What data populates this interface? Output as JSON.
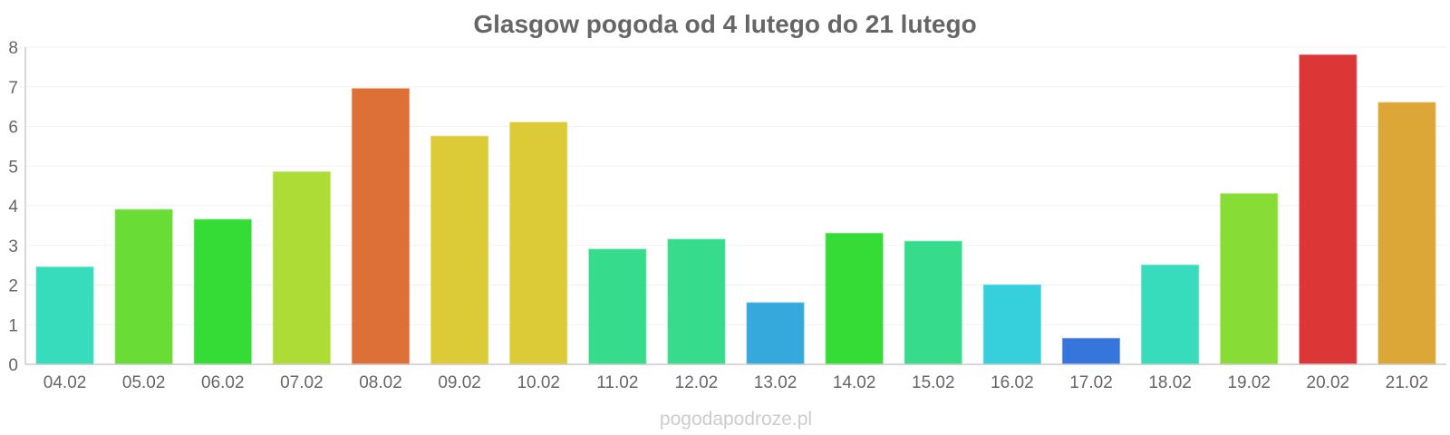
{
  "watermark": "pogodapodroze.pl",
  "chart_data": {
    "type": "bar",
    "title": "Glasgow pogoda od 4 lutego do 21 lutego",
    "xlabel": "",
    "ylabel": "",
    "ylim": [
      0,
      8
    ],
    "yticks": [
      "0",
      "1",
      "2",
      "3",
      "4",
      "5",
      "6",
      "7",
      "8"
    ],
    "grid": true,
    "categories": [
      "04.02",
      "05.02",
      "06.02",
      "07.02",
      "08.02",
      "09.02",
      "10.02",
      "11.02",
      "12.02",
      "13.02",
      "14.02",
      "15.02",
      "16.02",
      "17.02",
      "18.02",
      "19.02",
      "20.02",
      "21.02"
    ],
    "values": [
      2.45,
      3.9,
      3.65,
      4.85,
      6.95,
      5.75,
      6.1,
      2.9,
      3.15,
      1.55,
      3.3,
      3.1,
      2.0,
      0.65,
      2.5,
      4.3,
      7.8,
      6.6
    ],
    "colors": [
      "#36dcbc",
      "#6adc36",
      "#36dc36",
      "#addc36",
      "#dc7036",
      "#dccb36",
      "#dccb36",
      "#36dc8c",
      "#36dc8c",
      "#36a9dc",
      "#36dc36",
      "#36dc8c",
      "#36cfdc",
      "#3675dc",
      "#36dcbc",
      "#88dc36",
      "#dc3636",
      "#dca736"
    ]
  }
}
